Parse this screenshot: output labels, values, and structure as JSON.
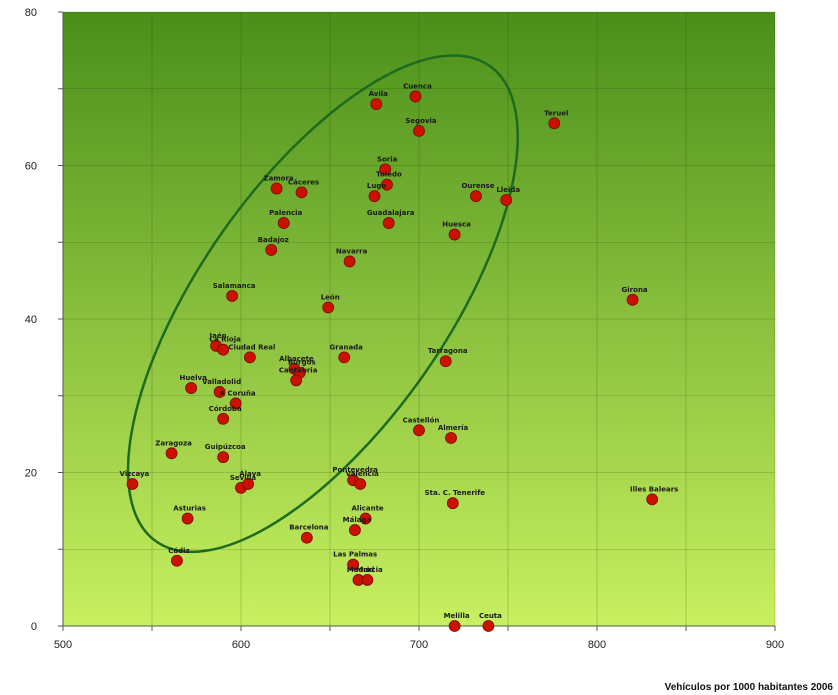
{
  "chart_data": {
    "type": "scatter",
    "title": "",
    "xlabel": "Vehículos por 1000 habitantes 2006",
    "ylabel": "",
    "xlim": [
      500,
      900
    ],
    "ylim": [
      0,
      80
    ],
    "x_ticks": [
      "500",
      "600",
      "700",
      "800",
      "900"
    ],
    "y_ticks": [
      "0",
      "20",
      "40",
      "60",
      "80"
    ],
    "grid": true,
    "marker_color": "#cc1100",
    "ellipse_color": "#1d6b1d",
    "background_gradient": [
      "#4a8f1a",
      "#c8f060"
    ],
    "ellipse": {
      "cx": 646,
      "cy": 42,
      "rx": 130,
      "ry": 21,
      "angle_deg": 55
    },
    "points": [
      {
        "label": "Ávila",
        "x": 676,
        "y": 68
      },
      {
        "label": "Cuenca",
        "x": 698,
        "y": 69
      },
      {
        "label": "Segovia",
        "x": 700,
        "y": 64.5
      },
      {
        "label": "Teruel",
        "x": 776,
        "y": 65.5
      },
      {
        "label": "Soria",
        "x": 681,
        "y": 59.5
      },
      {
        "label": "Toledo",
        "x": 682,
        "y": 57.5
      },
      {
        "label": "Lugo",
        "x": 675,
        "y": 56
      },
      {
        "label": "Zamora",
        "x": 620,
        "y": 57
      },
      {
        "label": "Cáceres",
        "x": 634,
        "y": 56.5
      },
      {
        "label": "Ourense",
        "x": 732,
        "y": 56
      },
      {
        "label": "Lleida",
        "x": 749,
        "y": 55.5
      },
      {
        "label": "Guadalajara",
        "x": 683,
        "y": 52.5
      },
      {
        "label": "Palencia",
        "x": 624,
        "y": 52.5
      },
      {
        "label": "Huesca",
        "x": 720,
        "y": 51
      },
      {
        "label": "Badajoz",
        "x": 617,
        "y": 49
      },
      {
        "label": "Navarra",
        "x": 661,
        "y": 47.5
      },
      {
        "label": "Salamanca",
        "x": 595,
        "y": 43
      },
      {
        "label": "León",
        "x": 649,
        "y": 41.5
      },
      {
        "label": "Girona",
        "x": 820,
        "y": 42.5
      },
      {
        "label": "Jaén",
        "x": 586,
        "y": 36.5
      },
      {
        "label": "La Rioja",
        "x": 590,
        "y": 36
      },
      {
        "label": "Ciudad Real",
        "x": 605,
        "y": 35
      },
      {
        "label": "Granada",
        "x": 658,
        "y": 35
      },
      {
        "label": "Tarragona",
        "x": 715,
        "y": 34.5
      },
      {
        "label": "Albacete",
        "x": 630,
        "y": 33.5
      },
      {
        "label": "Burgos",
        "x": 633,
        "y": 33
      },
      {
        "label": "Cantabria",
        "x": 631,
        "y": 32
      },
      {
        "label": "Huelva",
        "x": 572,
        "y": 31
      },
      {
        "label": "Valladolid",
        "x": 588,
        "y": 30.5
      },
      {
        "label": "A Coruña",
        "x": 597,
        "y": 29
      },
      {
        "label": "Córdoba",
        "x": 590,
        "y": 27
      },
      {
        "label": "Castellón",
        "x": 700,
        "y": 25.5
      },
      {
        "label": "Almería",
        "x": 718,
        "y": 24.5
      },
      {
        "label": "Zaragoza",
        "x": 561,
        "y": 22.5
      },
      {
        "label": "Guipúzcoa",
        "x": 590,
        "y": 22
      },
      {
        "label": "Vizcaya",
        "x": 539,
        "y": 18.5
      },
      {
        "label": "Sevilla",
        "x": 600,
        "y": 18
      },
      {
        "label": "Álava",
        "x": 604,
        "y": 18.5
      },
      {
        "label": "Pontevedra",
        "x": 663,
        "y": 19
      },
      {
        "label": "Valencia",
        "x": 667,
        "y": 18.5
      },
      {
        "label": "Sta. C. Tenerife",
        "x": 719,
        "y": 16
      },
      {
        "label": "Illes Balears",
        "x": 831,
        "y": 16.5
      },
      {
        "label": "Asturias",
        "x": 570,
        "y": 14
      },
      {
        "label": "Alicante",
        "x": 670,
        "y": 14
      },
      {
        "label": "Málaga",
        "x": 664,
        "y": 12.5
      },
      {
        "label": "Barcelona",
        "x": 637,
        "y": 11.5
      },
      {
        "label": "Cádiz",
        "x": 564,
        "y": 8.5
      },
      {
        "label": "Las Palmas",
        "x": 663,
        "y": 8
      },
      {
        "label": "Madrid",
        "x": 666,
        "y": 6
      },
      {
        "label": "Murcia",
        "x": 671,
        "y": 6
      },
      {
        "label": "Melilla",
        "x": 720,
        "y": 0
      },
      {
        "label": "Ceuta",
        "x": 739,
        "y": 0
      }
    ]
  }
}
